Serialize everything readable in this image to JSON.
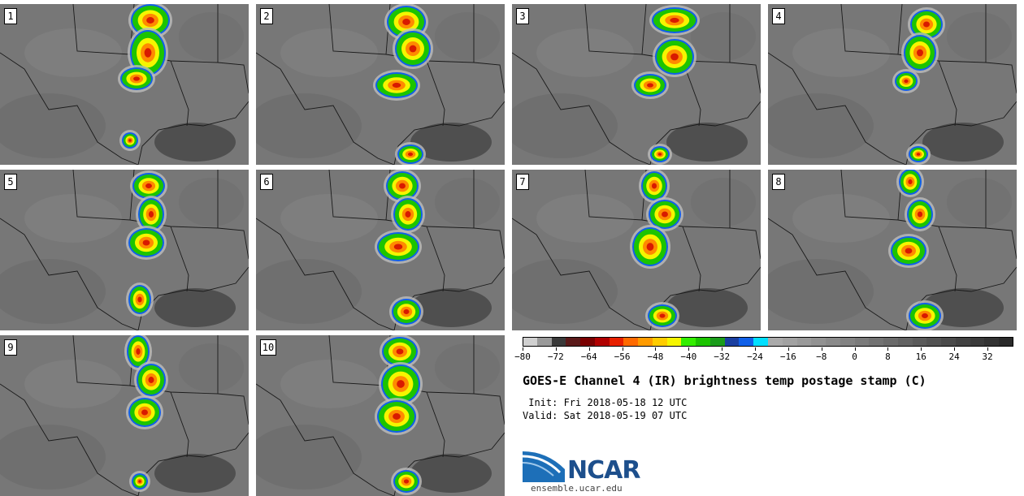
{
  "panels": [
    {
      "label": "1"
    },
    {
      "label": "2"
    },
    {
      "label": "3"
    },
    {
      "label": "4"
    },
    {
      "label": "5"
    },
    {
      "label": "6"
    },
    {
      "label": "7"
    },
    {
      "label": "8"
    },
    {
      "label": "9"
    },
    {
      "label": "10"
    }
  ],
  "colorbar": {
    "colors": [
      "#d0d0d0",
      "#9a9a9a",
      "#3a3a3a",
      "#5a1a1a",
      "#7a0000",
      "#b00000",
      "#e82000",
      "#ff6a00",
      "#ff9b00",
      "#ffcc00",
      "#f5f500",
      "#33ee00",
      "#1cc400",
      "#1a9c1a",
      "#1a3fa0",
      "#1060e8",
      "#00dfff",
      "#aaaaaa",
      "#a2a2a2",
      "#9a9a9a",
      "#929292",
      "#8a8a8a",
      "#828282",
      "#7a7a7a",
      "#727272",
      "#6a6a6a",
      "#626262",
      "#5a5a5a",
      "#525252",
      "#4a4a4a",
      "#424242",
      "#3a3a3a",
      "#323232",
      "#2a2a2a"
    ],
    "tick_labels": [
      "−80",
      "−72",
      "−64",
      "−56",
      "−48",
      "−40",
      "−32",
      "−24",
      "−16",
      "−8",
      "0",
      "8",
      "16",
      "24",
      "32"
    ]
  },
  "title": "GOES-E Channel 4 (IR) brightness temp postage stamp (C)",
  "init_text": " Init: Fri 2018-05-18 12 UTC",
  "valid_text": "Valid: Sat 2018-05-19 07 UTC",
  "logo": {
    "name": "NCAR",
    "url": "ensemble.ucar.edu"
  }
}
